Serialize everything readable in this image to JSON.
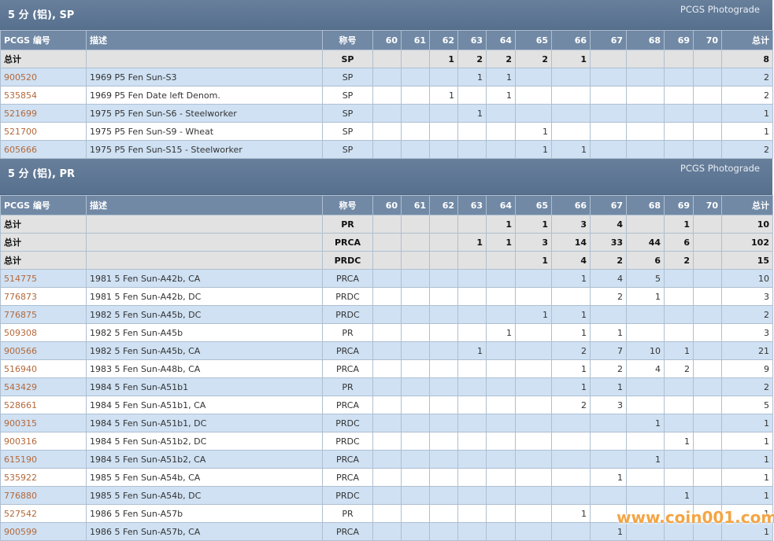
{
  "sections": [
    {
      "title": "5 分 (铝), SP",
      "badge": "PCGS Photograde",
      "columns": [
        "PCGS 编号",
        "描述",
        "称号",
        "60",
        "61",
        "62",
        "63",
        "64",
        "65",
        "66",
        "67",
        "68",
        "69",
        "70",
        "总计"
      ],
      "rows": [
        [
          "总计",
          null,
          "SP",
          null,
          null,
          1,
          2,
          2,
          2,
          1,
          null,
          null,
          null,
          null,
          8
        ],
        [
          "900520",
          "1969 P5 Fen Sun-S3",
          "SP",
          null,
          null,
          null,
          1,
          1,
          null,
          null,
          null,
          null,
          null,
          null,
          2
        ],
        [
          "535854",
          "1969 P5 Fen Date left Denom.",
          "SP",
          null,
          null,
          1,
          null,
          1,
          null,
          null,
          null,
          null,
          null,
          null,
          2
        ],
        [
          "521699",
          "1975 P5 Fen Sun-S6 - Steelworker",
          "SP",
          null,
          null,
          null,
          1,
          null,
          null,
          null,
          null,
          null,
          null,
          null,
          1
        ],
        [
          "521700",
          "1975 P5 Fen Sun-S9 - Wheat",
          "SP",
          null,
          null,
          null,
          null,
          null,
          1,
          null,
          null,
          null,
          null,
          null,
          1
        ],
        [
          "605666",
          "1975 P5 Fen Sun-S15 - Steelworker",
          "SP",
          null,
          null,
          null,
          null,
          null,
          1,
          1,
          null,
          null,
          null,
          null,
          2
        ]
      ]
    },
    {
      "title": "5 分 (铝), PR",
      "badge": "PCGS Photograde",
      "columns": [
        "PCGS 编号",
        "描述",
        "称号",
        "60",
        "61",
        "62",
        "63",
        "64",
        "65",
        "66",
        "67",
        "68",
        "69",
        "70",
        "总计"
      ],
      "rows": [
        [
          "总计",
          null,
          "PR",
          null,
          null,
          null,
          null,
          1,
          1,
          3,
          4,
          null,
          1,
          null,
          10
        ],
        [
          "总计",
          null,
          "PRCA",
          null,
          null,
          null,
          1,
          1,
          3,
          14,
          33,
          44,
          6,
          null,
          102
        ],
        [
          "总计",
          null,
          "PRDC",
          null,
          null,
          null,
          null,
          null,
          1,
          4,
          2,
          6,
          2,
          null,
          15
        ],
        [
          "514775",
          "1981 5 Fen Sun-A42b, CA",
          "PRCA",
          null,
          null,
          null,
          null,
          null,
          null,
          1,
          4,
          5,
          null,
          null,
          10
        ],
        [
          "776873",
          "1981 5 Fen Sun-A42b, DC",
          "PRDC",
          null,
          null,
          null,
          null,
          null,
          null,
          null,
          2,
          1,
          null,
          null,
          3
        ],
        [
          "776875",
          "1982 5 Fen Sun-A45b, DC",
          "PRDC",
          null,
          null,
          null,
          null,
          null,
          1,
          1,
          null,
          null,
          null,
          null,
          2
        ],
        [
          "509308",
          "1982 5 Fen Sun-A45b",
          "PR",
          null,
          null,
          null,
          null,
          1,
          null,
          1,
          1,
          null,
          null,
          null,
          3
        ],
        [
          "900566",
          "1982 5 Fen Sun-A45b, CA",
          "PRCA",
          null,
          null,
          null,
          1,
          null,
          null,
          2,
          7,
          10,
          1,
          null,
          21
        ],
        [
          "516940",
          "1983 5 Fen Sun-A48b, CA",
          "PRCA",
          null,
          null,
          null,
          null,
          null,
          null,
          1,
          2,
          4,
          2,
          null,
          9
        ],
        [
          "543429",
          "1984 5 Fen Sun-A51b1",
          "PR",
          null,
          null,
          null,
          null,
          null,
          null,
          1,
          1,
          null,
          null,
          null,
          2
        ],
        [
          "528661",
          "1984 5 Fen Sun-A51b1, CA",
          "PRCA",
          null,
          null,
          null,
          null,
          null,
          null,
          2,
          3,
          null,
          null,
          null,
          5
        ],
        [
          "900315",
          "1984 5 Fen Sun-A51b1, DC",
          "PRDC",
          null,
          null,
          null,
          null,
          null,
          null,
          null,
          null,
          1,
          null,
          null,
          1
        ],
        [
          "900316",
          "1984 5 Fen Sun-A51b2, DC",
          "PRDC",
          null,
          null,
          null,
          null,
          null,
          null,
          null,
          null,
          null,
          1,
          null,
          1
        ],
        [
          "615190",
          "1984 5 Fen Sun-A51b2, CA",
          "PRCA",
          null,
          null,
          null,
          null,
          null,
          null,
          null,
          null,
          1,
          null,
          null,
          1
        ],
        [
          "535922",
          "1985 5 Fen Sun-A54b, CA",
          "PRCA",
          null,
          null,
          null,
          null,
          null,
          null,
          null,
          1,
          null,
          null,
          null,
          1
        ],
        [
          "776880",
          "1985 5 Fen Sun-A54b, DC",
          "PRDC",
          null,
          null,
          null,
          null,
          null,
          null,
          null,
          null,
          null,
          1,
          null,
          1
        ],
        [
          "527542",
          "1986 5 Fen Sun-A57b",
          "PR",
          null,
          null,
          null,
          null,
          null,
          null,
          1,
          null,
          null,
          null,
          null,
          1
        ],
        [
          "900599",
          "1986 5 Fen Sun-A57b, CA",
          "PRCA",
          null,
          null,
          null,
          null,
          null,
          null,
          null,
          1,
          null,
          null,
          null,
          1
        ]
      ]
    }
  ],
  "watermark": "www.coin001.com"
}
